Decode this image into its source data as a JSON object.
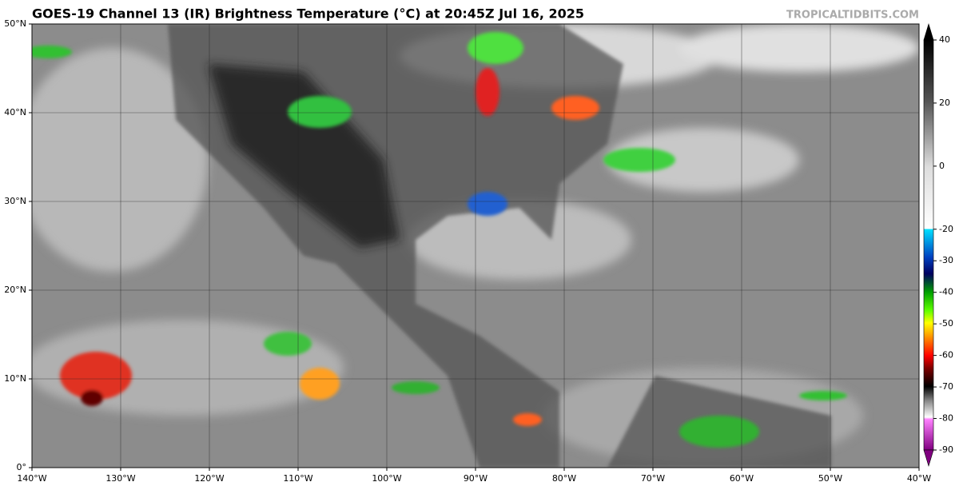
{
  "map": {
    "title": "GOES-19 Channel 13 (IR) Brightness Temperature (°C) at 20:45Z Jul 16, 2025",
    "credit": "TROPICALTIDBITS.COM",
    "xlim": [
      -140,
      -40
    ],
    "ylim": [
      0,
      50
    ],
    "xticks": [
      {
        "value": -140,
        "label": "140°W"
      },
      {
        "value": -130,
        "label": "130°W"
      },
      {
        "value": -120,
        "label": "120°W"
      },
      {
        "value": -110,
        "label": "110°W"
      },
      {
        "value": -100,
        "label": "100°W"
      },
      {
        "value": -90,
        "label": "90°W"
      },
      {
        "value": -80,
        "label": "80°W"
      },
      {
        "value": -70,
        "label": "70°W"
      },
      {
        "value": -60,
        "label": "60°W"
      },
      {
        "value": -50,
        "label": "50°W"
      },
      {
        "value": -40,
        "label": "40°W"
      }
    ],
    "yticks": [
      {
        "value": 0,
        "label": "0°"
      },
      {
        "value": 10,
        "label": "10°N"
      },
      {
        "value": 20,
        "label": "20°N"
      },
      {
        "value": 30,
        "label": "30°N"
      },
      {
        "value": 40,
        "label": "40°N"
      },
      {
        "value": 50,
        "label": "50°N"
      }
    ],
    "grid": true,
    "colorbar": {
      "clim": [
        -90,
        40
      ],
      "ticks": [
        40,
        20,
        0,
        -20,
        -30,
        -40,
        -50,
        -60,
        -70,
        -80,
        -90
      ]
    }
  }
}
